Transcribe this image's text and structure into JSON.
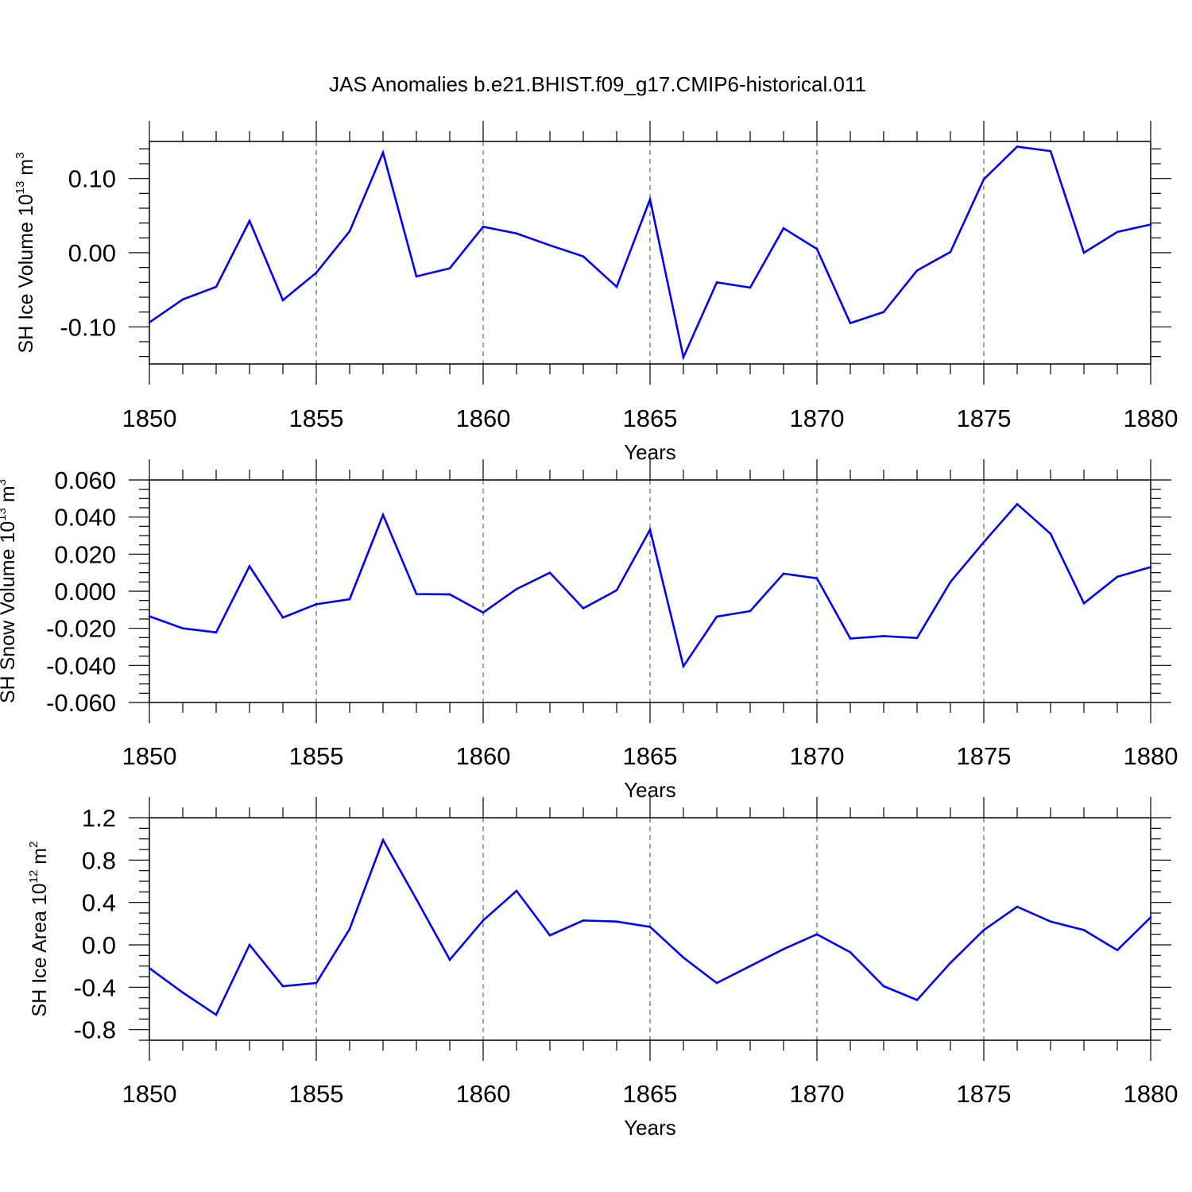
{
  "figure_title": "JAS Anomalies b.e21.BHIST.f09_g17.CMIP6-historical.011",
  "line_color": "#0000ff",
  "chart_data": [
    {
      "type": "line",
      "name": "sh-ice-volume",
      "ylabel": {
        "main": "SH Ice Volume 10",
        "exp": "13",
        "unit": " m",
        "unit_exp": "3"
      },
      "xlabel": "Years",
      "xlim": [
        1850,
        1880
      ],
      "ylim": [
        -0.15,
        0.15
      ],
      "xticks": [
        1850,
        1855,
        1860,
        1865,
        1870,
        1875,
        1880
      ],
      "xtick_labels": [
        "1850",
        "1855",
        "1860",
        "1865",
        "1870",
        "1875",
        "1880"
      ],
      "yticks": [
        -0.1,
        0.0,
        0.1
      ],
      "ytick_labels": [
        "-0.10",
        "0.00",
        "0.10"
      ],
      "yminor_step": 0.02,
      "x": [
        1850,
        1851,
        1852,
        1853,
        1854,
        1855,
        1856,
        1857,
        1858,
        1859,
        1860,
        1861,
        1862,
        1863,
        1864,
        1865,
        1866,
        1867,
        1868,
        1869,
        1870,
        1871,
        1872,
        1873,
        1874,
        1875,
        1876,
        1877,
        1878,
        1879,
        1880
      ],
      "y": [
        -0.094,
        -0.063,
        -0.046,
        0.043,
        -0.064,
        -0.027,
        0.029,
        0.135,
        -0.032,
        -0.021,
        0.035,
        0.026,
        0.01,
        -0.005,
        -0.046,
        0.072,
        -0.141,
        -0.04,
        -0.047,
        0.033,
        0.005,
        -0.095,
        -0.08,
        -0.024,
        0.001,
        0.099,
        0.143,
        0.137,
        0.0,
        0.028,
        0.038
      ]
    },
    {
      "type": "line",
      "name": "sh-snow-volume",
      "ylabel": {
        "main": "SH Snow Volume 10",
        "exp": "13",
        "unit": " m",
        "unit_exp": "3"
      },
      "xlabel": "Years",
      "xlim": [
        1850,
        1880
      ],
      "ylim": [
        -0.06,
        0.06
      ],
      "xticks": [
        1850,
        1855,
        1860,
        1865,
        1870,
        1875,
        1880
      ],
      "xtick_labels": [
        "1850",
        "1855",
        "1860",
        "1865",
        "1870",
        "1875",
        "1880"
      ],
      "yticks": [
        -0.06,
        -0.04,
        -0.02,
        0.0,
        0.02,
        0.04,
        0.06
      ],
      "ytick_labels": [
        "-0.060",
        "-0.040",
        "-0.020",
        "0.000",
        "0.020",
        "0.040",
        "0.060"
      ],
      "yminor_step": 0.005,
      "x": [
        1850,
        1851,
        1852,
        1853,
        1854,
        1855,
        1856,
        1857,
        1858,
        1859,
        1860,
        1861,
        1862,
        1863,
        1864,
        1865,
        1866,
        1867,
        1868,
        1869,
        1870,
        1871,
        1872,
        1873,
        1874,
        1875,
        1876,
        1877,
        1878,
        1879,
        1880
      ],
      "y": [
        -0.0135,
        -0.02,
        -0.0222,
        0.0135,
        -0.0142,
        -0.007,
        -0.0043,
        0.0412,
        -0.0015,
        -0.0017,
        -0.0115,
        0.0012,
        0.01,
        -0.0092,
        0.0005,
        0.0332,
        -0.0405,
        -0.0137,
        -0.0107,
        0.0095,
        0.007,
        -0.0255,
        -0.0242,
        -0.0252,
        0.005,
        0.0265,
        0.047,
        0.031,
        -0.0065,
        0.0078,
        0.013
      ]
    },
    {
      "type": "line",
      "name": "sh-ice-area",
      "ylabel": {
        "main": "SH Ice Area 10",
        "exp": "12",
        "unit": " m",
        "unit_exp": "2"
      },
      "xlabel": "Years",
      "xlim": [
        1850,
        1880
      ],
      "ylim": [
        -0.9,
        1.2
      ],
      "xticks": [
        1850,
        1855,
        1860,
        1865,
        1870,
        1875,
        1880
      ],
      "xtick_labels": [
        "1850",
        "1855",
        "1860",
        "1865",
        "1870",
        "1875",
        "1880"
      ],
      "yticks": [
        -0.8,
        -0.4,
        0.0,
        0.4,
        0.8,
        1.2
      ],
      "ytick_labels": [
        "-0.8",
        "-0.4",
        "0.0",
        "0.4",
        "0.8",
        "1.2"
      ],
      "yminor_step": 0.1,
      "x": [
        1850,
        1851,
        1852,
        1853,
        1854,
        1855,
        1856,
        1857,
        1858,
        1859,
        1860,
        1861,
        1862,
        1863,
        1864,
        1865,
        1866,
        1867,
        1868,
        1869,
        1870,
        1871,
        1872,
        1873,
        1874,
        1875,
        1876,
        1877,
        1878,
        1879,
        1880
      ],
      "y": [
        -0.22,
        -0.45,
        -0.66,
        0.0,
        -0.39,
        -0.36,
        0.15,
        0.99,
        0.43,
        -0.14,
        0.23,
        0.51,
        0.09,
        0.23,
        0.22,
        0.17,
        -0.12,
        -0.36,
        -0.2,
        -0.04,
        0.1,
        -0.07,
        -0.39,
        -0.52,
        -0.17,
        0.14,
        0.36,
        0.22,
        0.14,
        -0.05,
        0.26
      ]
    }
  ]
}
